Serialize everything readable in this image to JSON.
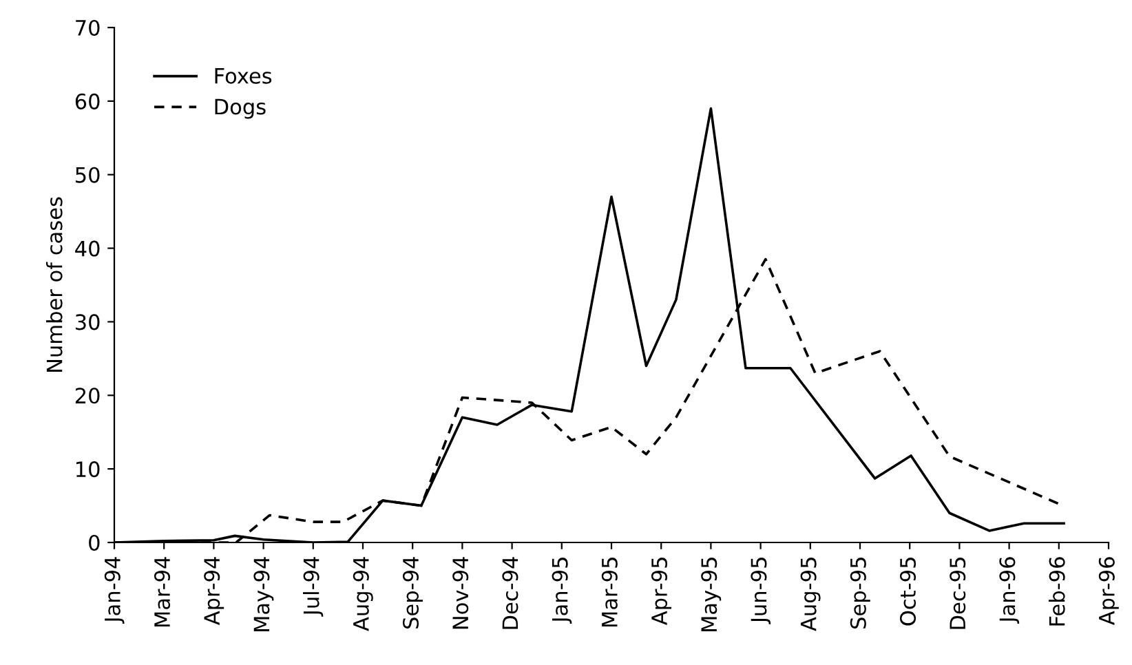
{
  "chart_data": {
    "type": "line",
    "ylabel": "Number of cases",
    "xlim": [
      "1994-01-25",
      "1996-04-04"
    ],
    "ylim": [
      0,
      70
    ],
    "yticks": [
      0,
      10,
      20,
      30,
      40,
      50,
      60,
      70
    ],
    "xticks": [
      {
        "value": "1994-01-25",
        "label": "Jan-94"
      },
      {
        "value": "1994-03-06",
        "label": "Mar-94"
      },
      {
        "value": "1994-04-15",
        "label": "Apr-94"
      },
      {
        "value": "1994-05-25",
        "label": "May-94"
      },
      {
        "value": "1994-07-04",
        "label": "Jul-94"
      },
      {
        "value": "1994-08-13",
        "label": "Aug-94"
      },
      {
        "value": "1994-09-22",
        "label": "Sep-94"
      },
      {
        "value": "1994-11-01",
        "label": "Nov-94"
      },
      {
        "value": "1994-12-11",
        "label": "Dec-94"
      },
      {
        "value": "1995-01-20",
        "label": "Jan-95"
      },
      {
        "value": "1995-03-01",
        "label": "Mar-95"
      },
      {
        "value": "1995-04-10",
        "label": "Apr-95"
      },
      {
        "value": "1995-05-20",
        "label": "May-95"
      },
      {
        "value": "1995-06-29",
        "label": "Jun-95"
      },
      {
        "value": "1995-08-08",
        "label": "Aug-95"
      },
      {
        "value": "1995-09-17",
        "label": "Sep-95"
      },
      {
        "value": "1995-10-27",
        "label": "Oct-95"
      },
      {
        "value": "1995-12-06",
        "label": "Dec-95"
      },
      {
        "value": "1996-01-15",
        "label": "Jan-96"
      },
      {
        "value": "1996-02-24",
        "label": "Feb-96"
      },
      {
        "value": "1996-04-04",
        "label": "Apr-96"
      }
    ],
    "grid": false,
    "legend": "top left",
    "marker": "none",
    "series": [
      {
        "name": "Foxes",
        "color": "#000000",
        "line_style": "solid",
        "x": [
          "1994-01-25",
          "1994-03-06",
          "1994-04-15",
          "1994-05-02",
          "1994-05-25",
          "1994-07-04",
          "1994-08-01",
          "1994-08-29",
          "1994-09-29",
          "1994-11-01",
          "1994-11-29",
          "1994-12-27",
          "1995-01-28",
          "1995-03-01",
          "1995-03-29",
          "1995-04-22",
          "1995-05-20",
          "1995-06-17",
          "1995-07-23",
          "1995-09-29",
          "1995-10-28",
          "1995-11-28",
          "1995-12-30",
          "1996-01-27",
          "1996-02-28"
        ],
        "values": [
          0,
          0.2,
          0.3,
          0.9,
          0.4,
          0,
          0.1,
          5.7,
          5,
          17,
          16,
          18.7,
          17.8,
          47,
          24,
          33,
          59,
          23.7,
          23.7,
          8.7,
          11.8,
          4,
          1.6,
          2.6,
          2.6
        ]
      },
      {
        "name": "Dogs",
        "color": "#000000",
        "line_style": "dashed",
        "x": [
          "1994-01-25",
          "1994-03-06",
          "1994-05-03",
          "1994-05-30",
          "1994-07-04",
          "1994-07-28",
          "1994-08-29",
          "1994-09-29",
          "1994-11-01",
          "1994-12-27",
          "1995-01-28",
          "1995-03-01",
          "1995-03-29",
          "1995-04-22",
          "1995-07-03",
          "1995-08-12",
          "1995-10-03",
          "1995-11-28",
          "1996-02-26"
        ],
        "values": [
          0,
          0,
          0,
          3.7,
          2.8,
          2.8,
          5.7,
          5,
          19.7,
          19,
          13.9,
          15.7,
          12,
          17,
          38.5,
          23,
          26,
          11.7,
          5.1
        ]
      }
    ]
  }
}
